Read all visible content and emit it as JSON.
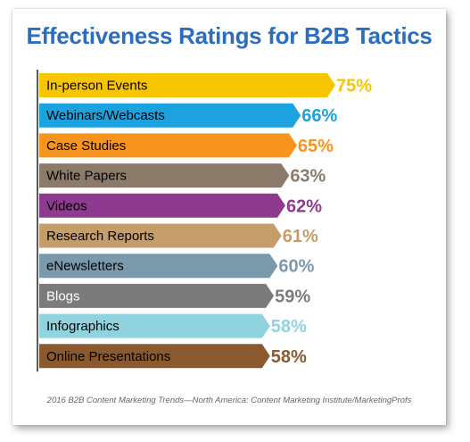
{
  "chart_data": {
    "type": "bar",
    "orientation": "horizontal",
    "title": "Effectiveness Ratings for B2B Tactics",
    "source": "2016 B2B Content Marketing Trends—North America: Content Marketing Institute/MarketingProfs",
    "value_suffix": "%",
    "xlim": [
      0,
      75
    ],
    "categories": [
      "In-person Events",
      "Webinars/Webcasts",
      "Case Studies",
      "White Papers",
      "Videos",
      "Research Reports",
      "eNewsletters",
      "Blogs",
      "Infographics",
      "Online Presentations"
    ],
    "values": [
      75,
      66,
      65,
      63,
      62,
      61,
      60,
      59,
      58,
      58
    ],
    "colors": [
      "#f7c600",
      "#1ba3df",
      "#f7941d",
      "#8c7b6b",
      "#8e3b8f",
      "#c59d6b",
      "#7a9aab",
      "#7b7b7b",
      "#8fd3de",
      "#8a5a2e"
    ],
    "label_text_colors": [
      "#000000",
      "#000000",
      "#000000",
      "#000000",
      "#000000",
      "#000000",
      "#000000",
      "#ffffff",
      "#000000",
      "#000000"
    ]
  }
}
